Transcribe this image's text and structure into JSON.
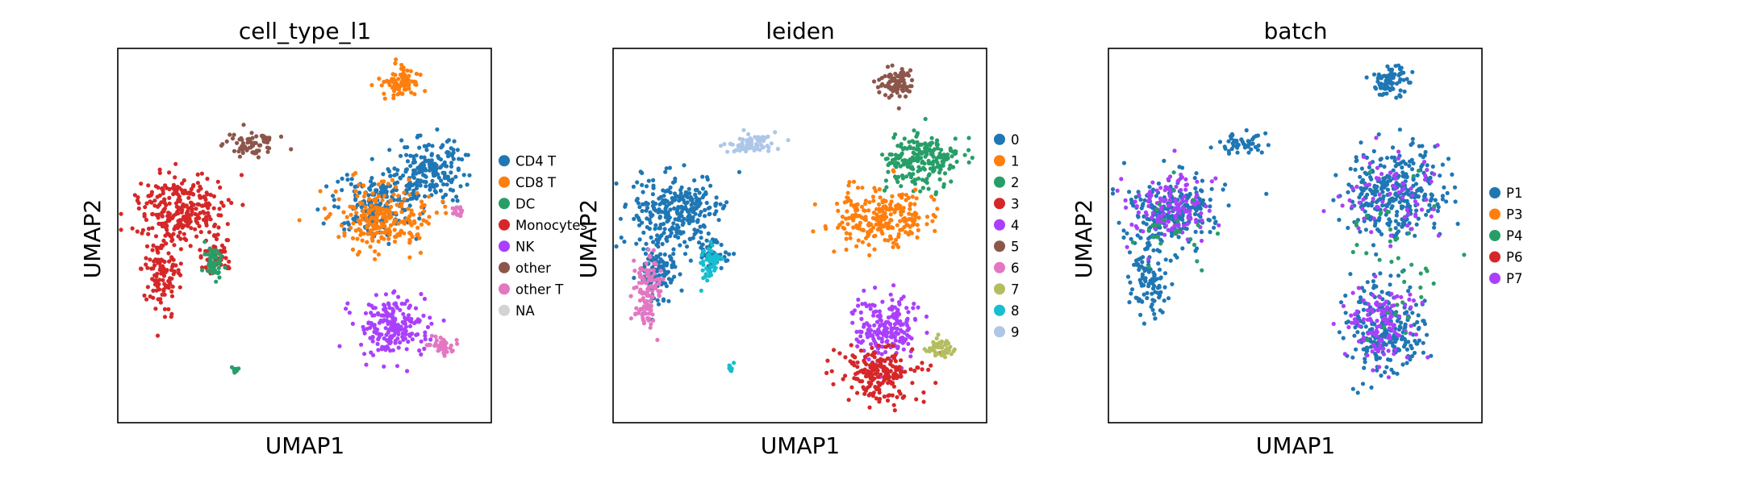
{
  "chart_data": [
    {
      "type": "scatter",
      "title": "cell_type_l1",
      "xlabel": "UMAP1",
      "ylabel": "UMAP2",
      "ticks": "none",
      "grid": false,
      "legend": "right",
      "legend_items": [
        {
          "label": "CD4 T",
          "color": "#1f77b4"
        },
        {
          "label": "CD8 T",
          "color": "#ff7f0e"
        },
        {
          "label": "DC",
          "color": "#279e68"
        },
        {
          "label": "Monocytes",
          "color": "#d62728"
        },
        {
          "label": "NK",
          "color": "#aa40fc"
        },
        {
          "label": "other",
          "color": "#8c564b"
        },
        {
          "label": "other T",
          "color": "#e377c2"
        },
        {
          "label": "NA",
          "color": "#d3d3d3"
        }
      ],
      "clusters": [
        {
          "group": "Monocytes",
          "color": "#d62728",
          "shape": "left-blob"
        },
        {
          "group": "DC",
          "color": "#279e68",
          "shape": "left-tail"
        },
        {
          "group": "other",
          "color": "#8c564b",
          "shape": "arm-tip"
        },
        {
          "group": "CD4 T",
          "color": "#1f77b4",
          "shape": "right-upper"
        },
        {
          "group": "CD8 T",
          "color": "#ff7f0e",
          "shape": "top-small"
        },
        {
          "group": "CD8 T",
          "color": "#ff7f0e",
          "shape": "right-middle"
        },
        {
          "group": "NK",
          "color": "#aa40fc",
          "shape": "right-lower"
        },
        {
          "group": "other T",
          "color": "#e377c2",
          "shape": "right-fringe"
        },
        {
          "group": "DC",
          "color": "#279e68",
          "shape": "bottom-small"
        }
      ]
    },
    {
      "type": "scatter",
      "title": "leiden",
      "xlabel": "UMAP1",
      "ylabel": "UMAP2",
      "ticks": "none",
      "grid": false,
      "legend": "right",
      "legend_items": [
        {
          "label": "0",
          "color": "#1f77b4"
        },
        {
          "label": "1",
          "color": "#ff7f0e"
        },
        {
          "label": "2",
          "color": "#279e68"
        },
        {
          "label": "3",
          "color": "#d62728"
        },
        {
          "label": "4",
          "color": "#aa40fc"
        },
        {
          "label": "5",
          "color": "#8c564b"
        },
        {
          "label": "6",
          "color": "#e377c2"
        },
        {
          "label": "7",
          "color": "#b5bd61"
        },
        {
          "label": "8",
          "color": "#17becf"
        },
        {
          "label": "9",
          "color": "#aec7e8"
        }
      ],
      "clusters": [
        {
          "group": "0",
          "color": "#1f77b4",
          "shape": "left-blob"
        },
        {
          "group": "6",
          "color": "#e377c2",
          "shape": "left-lower"
        },
        {
          "group": "8",
          "color": "#17becf",
          "shape": "left-tail"
        },
        {
          "group": "9",
          "color": "#aec7e8",
          "shape": "arm-tip"
        },
        {
          "group": "5",
          "color": "#8c564b",
          "shape": "top-small"
        },
        {
          "group": "2",
          "color": "#279e68",
          "shape": "right-top"
        },
        {
          "group": "1",
          "color": "#ff7f0e",
          "shape": "right-middle"
        },
        {
          "group": "4",
          "color": "#aa40fc",
          "shape": "right-lower"
        },
        {
          "group": "3",
          "color": "#d62728",
          "shape": "right-bottom"
        },
        {
          "group": "7",
          "color": "#b5bd61",
          "shape": "right-side"
        },
        {
          "group": "8",
          "color": "#17becf",
          "shape": "bottom-small"
        }
      ]
    },
    {
      "type": "scatter",
      "title": "batch",
      "xlabel": "UMAP1",
      "ylabel": "UMAP2",
      "ticks": "none",
      "grid": false,
      "legend": "right",
      "legend_items": [
        {
          "label": "P1",
          "color": "#1f77b4"
        },
        {
          "label": "P3",
          "color": "#ff7f0e"
        },
        {
          "label": "P4",
          "color": "#279e68"
        },
        {
          "label": "P6",
          "color": "#d62728"
        },
        {
          "label": "P7",
          "color": "#aa40fc"
        }
      ],
      "clusters": [
        {
          "group": "P1",
          "color": "#1f77b4",
          "shape": "all"
        },
        {
          "group": "P7",
          "color": "#aa40fc",
          "shape": "mixed"
        },
        {
          "group": "P4",
          "color": "#279e68",
          "shape": "sparse"
        }
      ]
    }
  ]
}
